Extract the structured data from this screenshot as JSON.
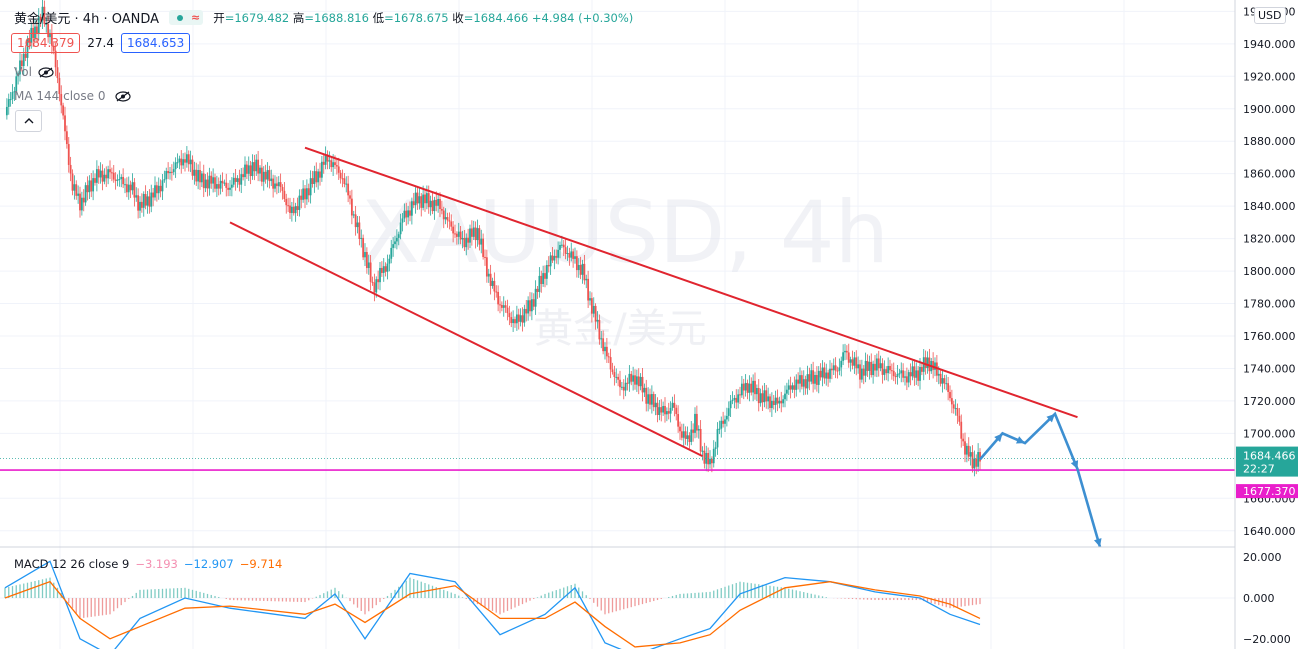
{
  "header": {
    "symbol": "黄金/美元",
    "interval": "4h",
    "exchange": "OANDA",
    "ext_icon": "≈",
    "ohlc": {
      "open_label": "开",
      "open": "=1679.482",
      "high_label": "高",
      "high": "=1688.816",
      "low_label": "低",
      "low": "=1678.675",
      "close_label": "收",
      "close": "=1684.466",
      "change": "+4.984 (+0.30%)"
    }
  },
  "prices": {
    "bid": "1684.379",
    "spread": "27.4",
    "ask": "1684.653"
  },
  "indicators": {
    "vol": "Vol",
    "ma": "MA 144 close 0"
  },
  "macd": {
    "label": "MACD 12 26 close 9",
    "hist": "−3.193",
    "macd": "−12.907",
    "signal": "−9.714"
  },
  "currency_button": "USD",
  "watermark": {
    "symbol": "XAUUSD, 4h",
    "name": "黄金/美元"
  },
  "price_axis": {
    "ticks": [
      "1960.000",
      "1940.000",
      "1920.000",
      "1900.000",
      "1880.000",
      "1860.000",
      "1840.000",
      "1820.000",
      "1800.000",
      "1780.000",
      "1760.000",
      "1740.000",
      "1720.000",
      "1700.000",
      "1660.000",
      "1640.000"
    ],
    "last_price": "1684.466",
    "countdown": "22:27",
    "support_label": "1677.370"
  },
  "macd_axis": {
    "ticks": [
      "20.000",
      "0.000",
      "−20.000"
    ]
  },
  "colors": {
    "up": "#26a69a",
    "down": "#ef5350",
    "trendline": "#e0252f",
    "support": "#e91ecb",
    "arrow": "#3d8fd1",
    "macd_line": "#2196f3",
    "signal_line": "#ff6d00"
  },
  "chart_data": {
    "type": "candlestick",
    "symbol": "XAUUSD",
    "timeframe": "4h",
    "price_range": [
      1630,
      1967
    ],
    "close_path": [
      [
        0,
        1896
      ],
      [
        3,
        1940
      ],
      [
        5,
        1958
      ],
      [
        6,
        1945
      ],
      [
        7,
        1920
      ],
      [
        8,
        1885
      ],
      [
        9,
        1852
      ],
      [
        10,
        1842
      ],
      [
        12,
        1858
      ],
      [
        14,
        1860
      ],
      [
        17,
        1850
      ],
      [
        18,
        1840
      ],
      [
        20,
        1848
      ],
      [
        22,
        1862
      ],
      [
        24,
        1870
      ],
      [
        26,
        1856
      ],
      [
        30,
        1852
      ],
      [
        33,
        1865
      ],
      [
        37,
        1850
      ],
      [
        38,
        1835
      ],
      [
        40,
        1848
      ],
      [
        42,
        1862
      ],
      [
        43,
        1870
      ],
      [
        45,
        1858
      ],
      [
        46,
        1843
      ],
      [
        47,
        1825
      ],
      [
        48,
        1810
      ],
      [
        49,
        1790
      ],
      [
        51,
        1805
      ],
      [
        53,
        1832
      ],
      [
        55,
        1845
      ],
      [
        58,
        1840
      ],
      [
        59,
        1830
      ],
      [
        61,
        1818
      ],
      [
        63,
        1825
      ],
      [
        64,
        1805
      ],
      [
        65,
        1790
      ],
      [
        66,
        1780
      ],
      [
        68,
        1768
      ],
      [
        70,
        1778
      ],
      [
        72,
        1800
      ],
      [
        74,
        1815
      ],
      [
        75,
        1812
      ],
      [
        77,
        1800
      ],
      [
        78,
        1782
      ],
      [
        80,
        1750
      ],
      [
        82,
        1728
      ],
      [
        84,
        1735
      ],
      [
        86,
        1720
      ],
      [
        88,
        1712
      ],
      [
        89,
        1718
      ],
      [
        90,
        1702
      ],
      [
        91,
        1695
      ],
      [
        92,
        1708
      ],
      [
        93,
        1688
      ],
      [
        94,
        1680
      ],
      [
        95,
        1700
      ],
      [
        97,
        1720
      ],
      [
        99,
        1730
      ],
      [
        101,
        1722
      ],
      [
        103,
        1718
      ],
      [
        105,
        1730
      ],
      [
        107,
        1733
      ],
      [
        109,
        1736
      ],
      [
        111,
        1740
      ],
      [
        112,
        1750
      ],
      [
        114,
        1738
      ],
      [
        116,
        1742
      ],
      [
        118,
        1738
      ],
      [
        120,
        1735
      ],
      [
        122,
        1738
      ],
      [
        123,
        1745
      ],
      [
        125,
        1733
      ],
      [
        126,
        1723
      ],
      [
        127,
        1710
      ],
      [
        128,
        1690
      ],
      [
        129,
        1683
      ],
      [
        130,
        1684
      ]
    ],
    "macd": {
      "macd": [
        [
          0,
          5
        ],
        [
          6,
          18
        ],
        [
          10,
          -20
        ],
        [
          14,
          -28
        ],
        [
          18,
          -10
        ],
        [
          24,
          0
        ],
        [
          30,
          -5
        ],
        [
          40,
          -10
        ],
        [
          44,
          2
        ],
        [
          48,
          -20
        ],
        [
          54,
          12
        ],
        [
          60,
          8
        ],
        [
          66,
          -18
        ],
        [
          72,
          -8
        ],
        [
          76,
          5
        ],
        [
          80,
          -22
        ],
        [
          84,
          -28
        ],
        [
          90,
          -20
        ],
        [
          94,
          -15
        ],
        [
          98,
          2
        ],
        [
          104,
          10
        ],
        [
          110,
          8
        ],
        [
          116,
          3
        ],
        [
          122,
          0
        ],
        [
          126,
          -8
        ],
        [
          130,
          -13
        ]
      ],
      "signal": [
        [
          0,
          0
        ],
        [
          6,
          8
        ],
        [
          10,
          -10
        ],
        [
          14,
          -20
        ],
        [
          18,
          -14
        ],
        [
          24,
          -5
        ],
        [
          30,
          -4
        ],
        [
          40,
          -8
        ],
        [
          44,
          -3
        ],
        [
          48,
          -12
        ],
        [
          54,
          2
        ],
        [
          60,
          6
        ],
        [
          66,
          -10
        ],
        [
          72,
          -10
        ],
        [
          76,
          -2
        ],
        [
          80,
          -14
        ],
        [
          84,
          -24
        ],
        [
          90,
          -22
        ],
        [
          94,
          -18
        ],
        [
          98,
          -6
        ],
        [
          104,
          5
        ],
        [
          110,
          8
        ],
        [
          116,
          4
        ],
        [
          122,
          1
        ],
        [
          126,
          -3
        ],
        [
          130,
          -10
        ]
      ],
      "range": [
        -25,
        25
      ]
    },
    "trendlines": [
      {
        "name": "channel-upper",
        "points": [
          [
            40,
            1876
          ],
          [
            143,
            1710
          ]
        ]
      },
      {
        "name": "channel-lower",
        "points": [
          [
            30,
            1830
          ],
          [
            93,
            1686
          ]
        ]
      }
    ],
    "support_level": 1677.37,
    "projection_path": [
      [
        130,
        1684
      ],
      [
        133,
        1700
      ],
      [
        136,
        1694
      ],
      [
        140,
        1712
      ],
      [
        143,
        1678
      ],
      [
        146,
        1630
      ]
    ]
  }
}
